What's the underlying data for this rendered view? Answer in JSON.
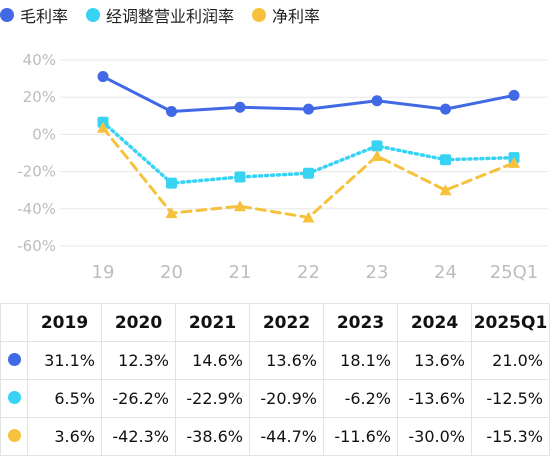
{
  "colors": {
    "gross": "#4169e6",
    "adjusted": "#38d3f2",
    "net": "#f6c23e",
    "axis_text": "#bdbdbd",
    "grid": "#e8e8e8"
  },
  "chart_data": {
    "type": "line",
    "categories": [
      "19",
      "20",
      "21",
      "22",
      "23",
      "24",
      "25Q1"
    ],
    "ylim": [
      -60,
      40
    ],
    "yticks": [
      "40%",
      "20%",
      "0%",
      "-20%",
      "-40%",
      "-60%"
    ],
    "yunit": "%",
    "grid": true,
    "legend_position": "top-left",
    "series": [
      {
        "name": "毛利率",
        "color": "#4169e6",
        "style": "solid",
        "marker": "circle",
        "values": [
          31.1,
          12.3,
          14.6,
          13.6,
          18.1,
          13.6,
          21.0
        ]
      },
      {
        "name": "经调整营业利润率",
        "color": "#38d3f2",
        "style": "dotted",
        "marker": "square",
        "values": [
          6.5,
          -26.2,
          -22.9,
          -20.9,
          -6.2,
          -13.6,
          -12.5
        ]
      },
      {
        "name": "净利率",
        "color": "#f6c23e",
        "style": "dashed",
        "marker": "triangle",
        "values": [
          3.6,
          -42.3,
          -38.6,
          -44.7,
          -11.6,
          -30.0,
          -15.3
        ]
      }
    ]
  },
  "table": {
    "headers": [
      "2019",
      "2020",
      "2021",
      "2022",
      "2023",
      "2024",
      "2025Q1"
    ],
    "rows": [
      {
        "series": "毛利率",
        "cells": [
          "31.1%",
          "12.3%",
          "14.6%",
          "13.6%",
          "18.1%",
          "13.6%",
          "21.0%"
        ]
      },
      {
        "series": "经调整营业利润率",
        "cells": [
          "6.5%",
          "-26.2%",
          "-22.9%",
          "-20.9%",
          "-6.2%",
          "-13.6%",
          "-12.5%"
        ]
      },
      {
        "series": "净利率",
        "cells": [
          "3.6%",
          "-42.3%",
          "-38.6%",
          "-44.7%",
          "-11.6%",
          "-30.0%",
          "-15.3%"
        ]
      }
    ]
  }
}
